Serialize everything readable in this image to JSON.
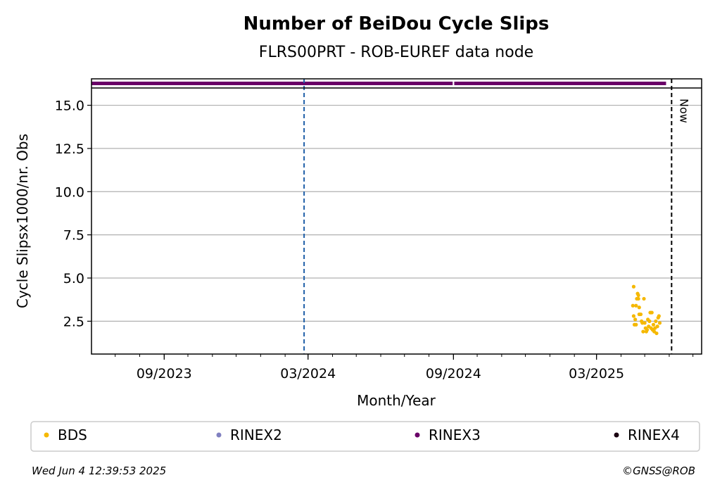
{
  "chart_data": {
    "type": "scatter",
    "title": "Number of BeiDou Cycle Slips",
    "subtitle": "FLRS00PRT - ROB-EUREF data node",
    "xlabel": "Month/Year",
    "ylabel": "Cycle Slipsx1000/nr. Obs",
    "x_range": [
      "2023-06-01",
      "2025-07-12"
    ],
    "ylim": [
      0.6,
      16.0
    ],
    "x_ticks": [
      {
        "date": "2023-09-01",
        "label": "09/2023"
      },
      {
        "date": "2024-03-01",
        "label": "03/2024"
      },
      {
        "date": "2024-09-01",
        "label": "09/2024"
      },
      {
        "date": "2025-03-01",
        "label": "03/2025"
      }
    ],
    "y_ticks": [
      {
        "value": 2.5,
        "label": "2.5"
      },
      {
        "value": 5.0,
        "label": "5.0"
      },
      {
        "value": 7.5,
        "label": "7.5"
      },
      {
        "value": 10.0,
        "label": "10.0"
      },
      {
        "value": 12.5,
        "label": "12.5"
      },
      {
        "value": 15.0,
        "label": "15.0"
      }
    ],
    "grid": "horizontal",
    "vlines": [
      {
        "date": "2024-02-25",
        "color": "#1f5fa8",
        "style": "dashed"
      },
      {
        "date": "2025-06-04",
        "color": "#000000",
        "style": "dashed",
        "label": "Now"
      }
    ],
    "top_band": {
      "series": "RINEX3",
      "color": "#6a0068",
      "start": "2023-06-01",
      "end": "2025-05-28",
      "gap": [
        "2024-08-31",
        "2024-09-02"
      ]
    },
    "series": [
      {
        "name": "BDS",
        "color": "#f5b800",
        "points": [
          {
            "date": "2025-04-17",
            "y": 4.5
          },
          {
            "date": "2025-04-16",
            "y": 3.4
          },
          {
            "date": "2025-04-17",
            "y": 2.8
          },
          {
            "date": "2025-04-18",
            "y": 2.3
          },
          {
            "date": "2025-04-19",
            "y": 2.6
          },
          {
            "date": "2025-04-20",
            "y": 3.4
          },
          {
            "date": "2025-04-20",
            "y": 2.3
          },
          {
            "date": "2025-04-21",
            "y": 3.8
          },
          {
            "date": "2025-04-22",
            "y": 4.1
          },
          {
            "date": "2025-04-23",
            "y": 4.0
          },
          {
            "date": "2025-04-23",
            "y": 3.8
          },
          {
            "date": "2025-04-24",
            "y": 3.3
          },
          {
            "date": "2025-04-24",
            "y": 2.9
          },
          {
            "date": "2025-04-26",
            "y": 2.9
          },
          {
            "date": "2025-04-27",
            "y": 2.5
          },
          {
            "date": "2025-04-28",
            "y": 2.4
          },
          {
            "date": "2025-04-29",
            "y": 1.9
          },
          {
            "date": "2025-04-30",
            "y": 3.8
          },
          {
            "date": "2025-05-01",
            "y": 2.4
          },
          {
            "date": "2025-05-02",
            "y": 2.1
          },
          {
            "date": "2025-05-03",
            "y": 1.9
          },
          {
            "date": "2025-05-04",
            "y": 2.0
          },
          {
            "date": "2025-05-05",
            "y": 2.6
          },
          {
            "date": "2025-05-06",
            "y": 2.2
          },
          {
            "date": "2025-05-07",
            "y": 2.5
          },
          {
            "date": "2025-05-08",
            "y": 3.0
          },
          {
            "date": "2025-05-09",
            "y": 2.1
          },
          {
            "date": "2025-05-10",
            "y": 3.0
          },
          {
            "date": "2025-05-11",
            "y": 2.0
          },
          {
            "date": "2025-05-12",
            "y": 2.3
          },
          {
            "date": "2025-05-13",
            "y": 1.9
          },
          {
            "date": "2025-05-14",
            "y": 2.1
          },
          {
            "date": "2025-05-15",
            "y": 2.5
          },
          {
            "date": "2025-05-16",
            "y": 1.8
          },
          {
            "date": "2025-05-17",
            "y": 2.2
          },
          {
            "date": "2025-05-18",
            "y": 2.7
          },
          {
            "date": "2025-05-19",
            "y": 2.8
          },
          {
            "date": "2025-05-20",
            "y": 2.4
          }
        ]
      }
    ],
    "legend": {
      "placement": "bottom",
      "entries": [
        {
          "label": "BDS",
          "color": "#f5b800"
        },
        {
          "label": "RINEX2",
          "color": "#8080c0"
        },
        {
          "label": "RINEX3",
          "color": "#6a0068"
        },
        {
          "label": "RINEX4",
          "color": "#1a0010"
        }
      ]
    }
  },
  "footer": {
    "timestamp": "Wed Jun  4 12:39:53 2025",
    "credit": "©GNSS@ROB"
  }
}
